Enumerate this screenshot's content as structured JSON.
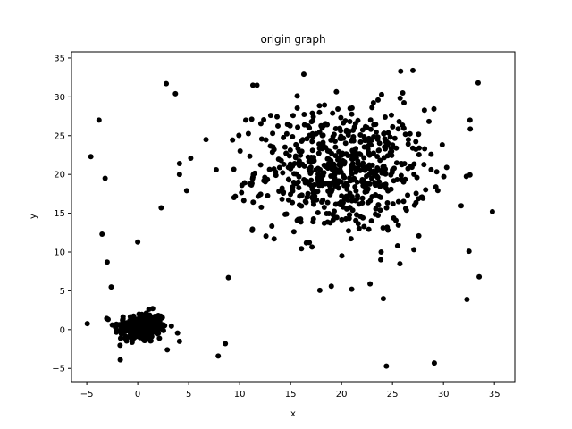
{
  "chart_data": {
    "type": "scatter",
    "title": "origin graph",
    "xlabel": "x",
    "ylabel": "y",
    "xlim": [
      -6.5,
      37.0
    ],
    "ylim": [
      -6.7,
      35.8
    ],
    "xticks": [
      -5,
      0,
      5,
      10,
      15,
      20,
      25,
      30,
      35
    ],
    "yticks": [
      -5,
      0,
      5,
      10,
      15,
      20,
      25,
      30,
      35
    ],
    "grid": false,
    "marker_color": "#000000",
    "series": [
      {
        "clusters": [
          {
            "center": [
              0.3,
              0.3
            ],
            "spread_x": 1.3,
            "spread_y": 1.0,
            "count": 240
          },
          {
            "center": [
              20.0,
              20.5
            ],
            "spread_x": 4.2,
            "spread_y": 4.0,
            "count": 620
          }
        ],
        "points": [
          [
            -4.6,
            22.3
          ],
          [
            -3.8,
            27.0
          ],
          [
            -3.2,
            19.5
          ],
          [
            -3.5,
            12.3
          ],
          [
            -3.0,
            8.7
          ],
          [
            -2.6,
            5.5
          ],
          [
            0.0,
            11.3
          ],
          [
            2.3,
            15.7
          ],
          [
            2.8,
            31.7
          ],
          [
            3.7,
            30.4
          ],
          [
            4.1,
            21.4
          ],
          [
            4.1,
            20.0
          ],
          [
            4.8,
            17.9
          ],
          [
            5.2,
            22.1
          ],
          [
            6.7,
            24.5
          ],
          [
            7.7,
            20.6
          ],
          [
            8.9,
            6.7
          ],
          [
            8.6,
            -1.8
          ],
          [
            7.9,
            -3.4
          ],
          [
            4.1,
            -1.5
          ],
          [
            2.9,
            -2.6
          ],
          [
            10.6,
            27.0
          ],
          [
            11.3,
            31.5
          ],
          [
            11.7,
            31.5
          ],
          [
            16.3,
            32.9
          ],
          [
            19.0,
            5.6
          ],
          [
            21.0,
            5.2
          ],
          [
            22.8,
            5.9
          ],
          [
            24.1,
            4.0
          ],
          [
            24.4,
            -4.7
          ],
          [
            29.1,
            -4.3
          ],
          [
            25.8,
            33.3
          ],
          [
            27.0,
            33.4
          ],
          [
            26.0,
            30.5
          ],
          [
            27.1,
            10.3
          ],
          [
            25.5,
            10.8
          ],
          [
            32.3,
            3.9
          ],
          [
            32.5,
            10.1
          ],
          [
            32.6,
            27.0
          ],
          [
            33.4,
            31.8
          ],
          [
            33.5,
            6.8
          ],
          [
            34.8,
            15.2
          ]
        ]
      }
    ]
  }
}
